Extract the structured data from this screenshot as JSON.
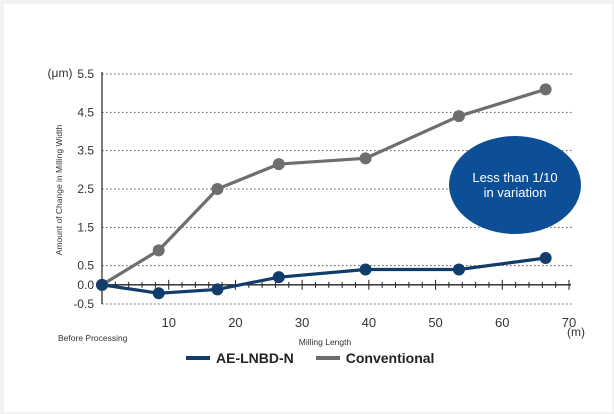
{
  "chart_data": {
    "type": "line",
    "ylabel": "Amount of Change in Milling Width",
    "y_unit": "(μm)",
    "xlabel": "Milling Length",
    "x_unit": "(m)",
    "x_origin_label": "Before Processing",
    "xlim": [
      0,
      70
    ],
    "ylim": [
      -0.5,
      5.5
    ],
    "x_ticks": [
      10,
      20,
      30,
      40,
      50,
      60,
      70
    ],
    "y_ticks": [
      -0.5,
      0.0,
      0.5,
      1.5,
      2.5,
      3.5,
      4.5,
      5.5
    ],
    "y_tick_labels": [
      "-0.5",
      "0.0",
      "0.5",
      "1.5",
      "2.5",
      "3.5",
      "4.5",
      "5.5"
    ],
    "grid": "horizontal dotted",
    "series": [
      {
        "name": "AE-LNBD-N",
        "color": "#123d6b",
        "x": [
          0,
          8.5,
          17.3,
          26.5,
          39.5,
          53.5,
          66.5
        ],
        "y": [
          0.0,
          -0.22,
          -0.12,
          0.2,
          0.4,
          0.4,
          0.7
        ]
      },
      {
        "name": "Conventional",
        "color": "#6e6e6e",
        "x": [
          0,
          8.5,
          17.3,
          26.5,
          39.5,
          53.5,
          66.5
        ],
        "y": [
          0.0,
          0.9,
          2.5,
          3.15,
          3.3,
          4.4,
          5.1
        ]
      }
    ],
    "annotation": {
      "lines": [
        "Less than 1/10",
        "in variation"
      ],
      "color": "#0d4f96"
    },
    "legend_position": "bottom"
  }
}
